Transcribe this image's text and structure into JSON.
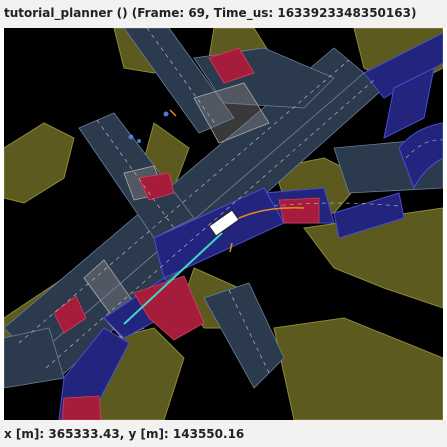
{
  "window": {
    "title": "tutorial_planner () (Frame: 69, Time_us: 1633923348350163)"
  },
  "status": {
    "coordinates": "x [m]: 365333.43, y [m]: 143550.16"
  },
  "colors": {
    "background": "#000000",
    "sidewalk": "#5c5a1e",
    "lane": "#2c3a4e",
    "route_lane": "#22247e",
    "crosswalk": "#7f7f7f",
    "stop_zone": "#a51d3a",
    "trajectory": "#e08a2c",
    "ego": "#ffffff",
    "path": "#3fd7c8"
  }
}
